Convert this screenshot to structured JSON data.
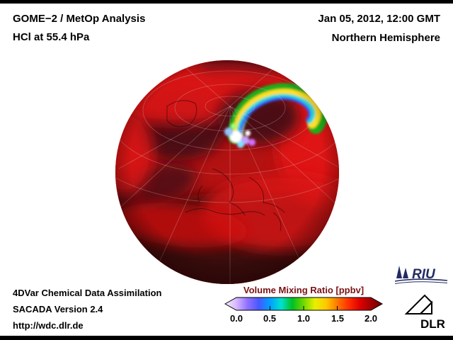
{
  "header": {
    "title": "GOME−2 / MetOp Analysis",
    "subtitle": "HCl at 55.4 hPa",
    "datetime": "Jan 05, 2012, 12:00 GMT",
    "region": "Northern Hemisphere"
  },
  "map": {
    "type": "orthographic-globe",
    "hemisphere": "Northern",
    "high_value_color": "#d81212",
    "low_value_color": "#3c0e11",
    "vortex_feature_colors": [
      "#1fae1f",
      "#ffe020",
      "#20d8d8",
      "#3858ff",
      "#c0a0ff",
      "#ffffff"
    ]
  },
  "colorbar": {
    "title": "Volume Mixing Ratio [ppbv]",
    "title_color": "#7b1113",
    "ticks": [
      "0.0",
      "0.5",
      "1.0",
      "1.5",
      "2.0"
    ],
    "range": [
      0.0,
      2.0
    ],
    "gradient": [
      "#f4eeff",
      "#d8b8ff",
      "#9070ff",
      "#4858ff",
      "#00a0ff",
      "#00e0d0",
      "#00c020",
      "#70d800",
      "#e8f000",
      "#ffc800",
      "#ff7800",
      "#ff3000",
      "#e00000",
      "#a00000",
      "#700000"
    ]
  },
  "footer": {
    "lines": [
      "4DVar Chemical Data Assimilation",
      "SACADA Version 2.4",
      "http://wdc.dlr.de"
    ]
  },
  "logos": {
    "riu_text": "RIU",
    "dlr_text": "DLR",
    "riu_color": "#232b63",
    "dlr_color": "#000000"
  }
}
